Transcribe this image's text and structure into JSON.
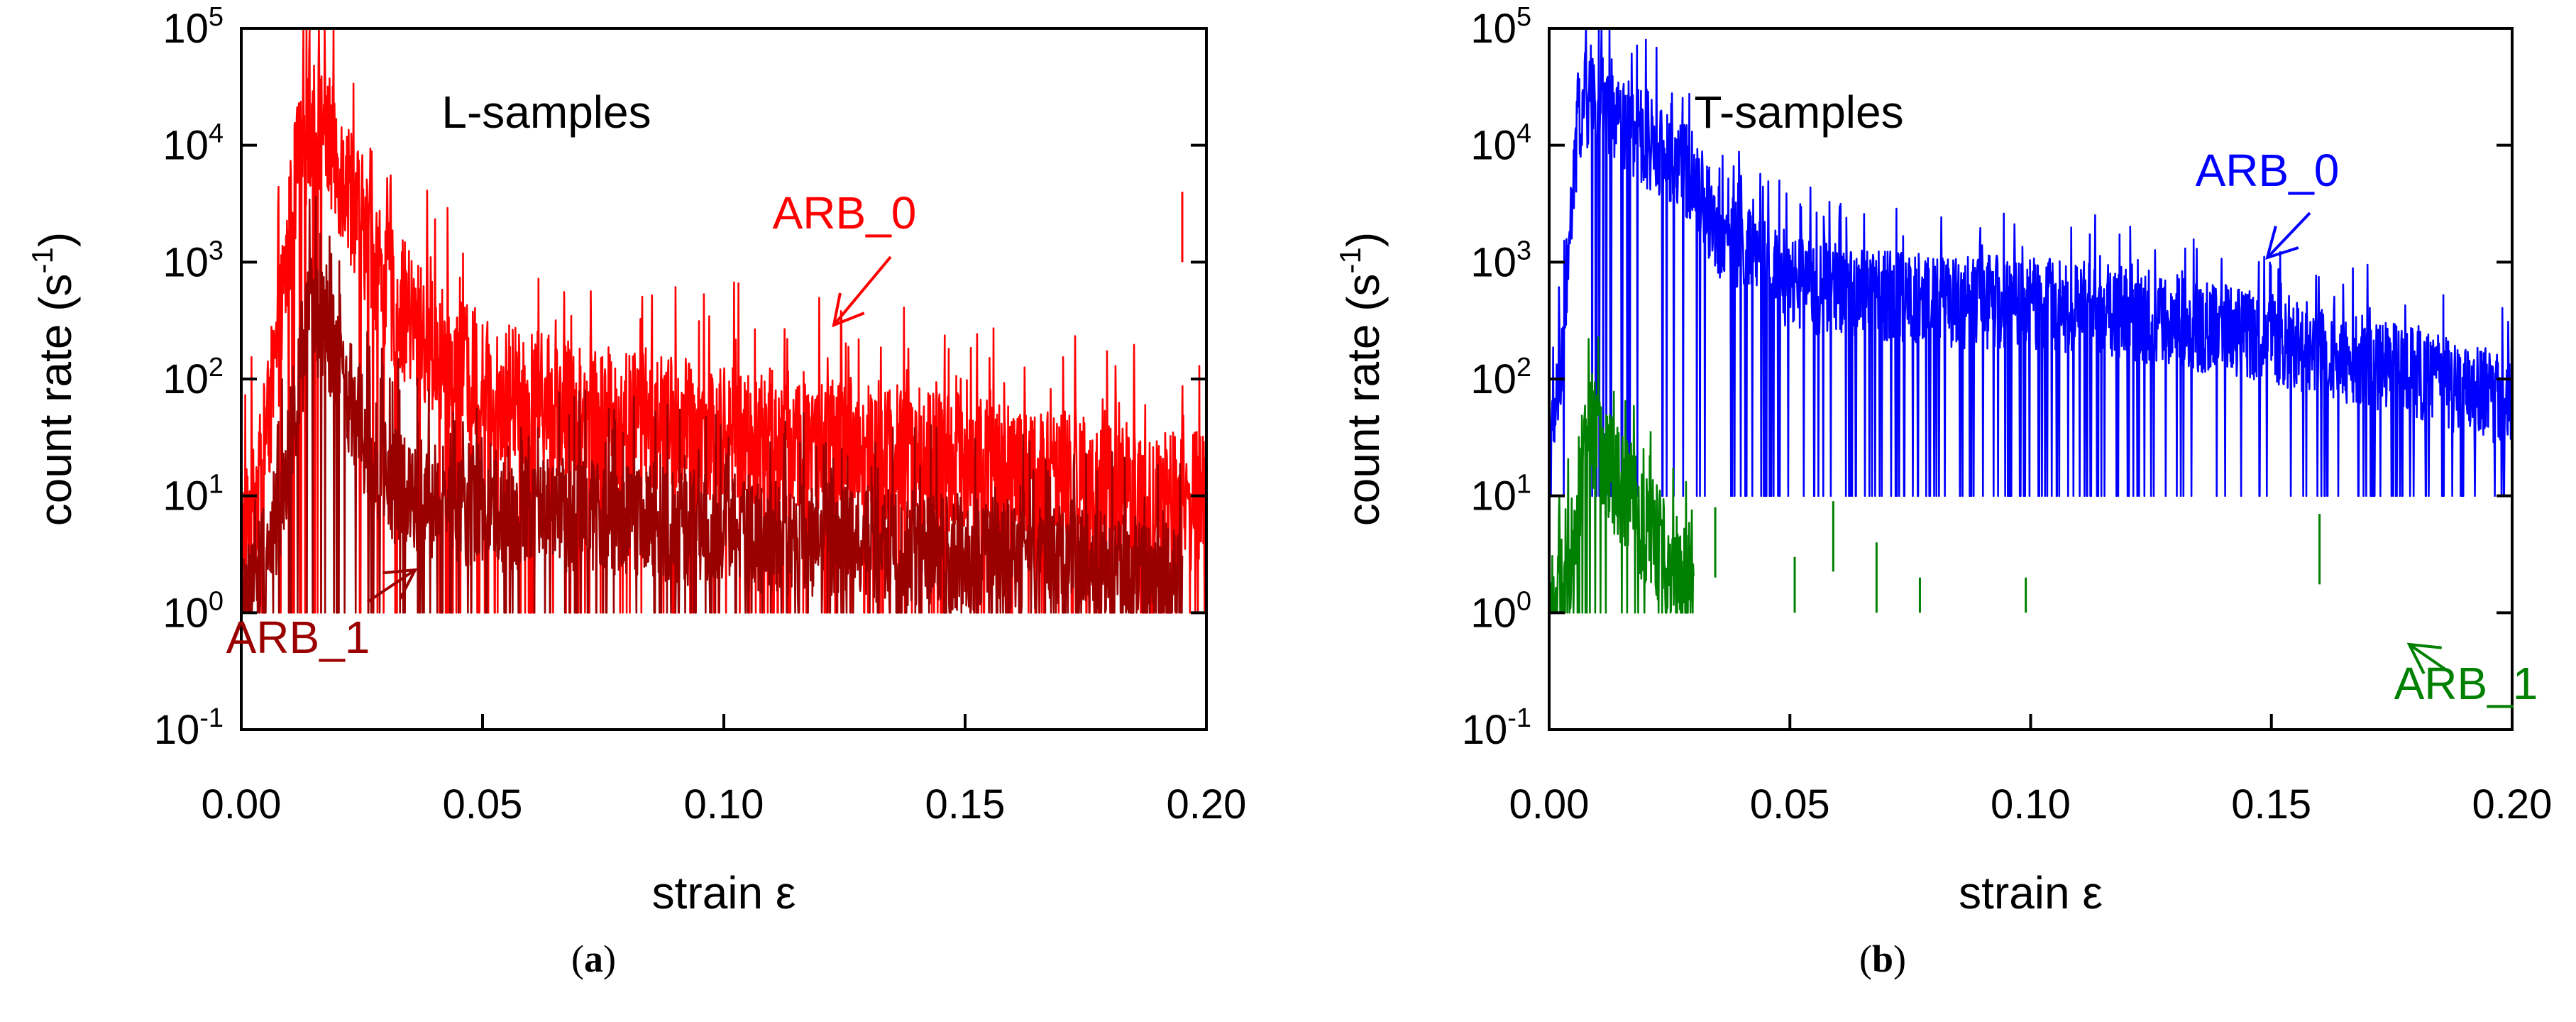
{
  "chart_data": [
    {
      "panel": "a",
      "type": "line",
      "caption": "a",
      "subtitle": "L-samples",
      "xlabel": "strain ε",
      "ylabel": "count rate (s-1)",
      "xlim": [
        0.0,
        0.2
      ],
      "ylim": [
        0.1,
        100000
      ],
      "yscale": "log",
      "x_ticks": [
        0.0,
        0.05,
        0.1,
        0.15,
        0.2
      ],
      "x_tick_labels": [
        "0.00",
        "0.05",
        "0.10",
        "0.15",
        "0.20"
      ],
      "y_ticks": [
        0.1,
        1,
        10,
        100,
        1000,
        10000,
        100000
      ],
      "y_tick_labels": [
        {
          "base": "10",
          "exp": "-1"
        },
        {
          "base": "10",
          "exp": "0"
        },
        {
          "base": "10",
          "exp": "1"
        },
        {
          "base": "10",
          "exp": "2"
        },
        {
          "base": "10",
          "exp": "3"
        },
        {
          "base": "10",
          "exp": "4"
        },
        {
          "base": "10",
          "exp": "5"
        }
      ],
      "series": [
        {
          "name": "ARB_0",
          "color": "#ff0000",
          "strain": [
            0.0,
            0.004,
            0.008,
            0.011,
            0.014,
            0.017,
            0.02,
            0.025,
            0.03,
            0.04,
            0.05,
            0.07,
            0.1,
            0.13,
            0.16,
            0.18,
            0.2
          ],
          "count_rate": [
            5,
            15,
            300,
            5000,
            18000,
            15000,
            8000,
            2500,
            700,
            200,
            100,
            60,
            40,
            30,
            18,
            12,
            10
          ],
          "noise_decades": 1.2,
          "min_rate": 1,
          "spikes": [
            {
              "strain": 0.195,
              "count_rate": 4000
            }
          ]
        },
        {
          "name": "ARB_1",
          "color": "#9b0000",
          "strain": [
            0.0,
            0.008,
            0.011,
            0.014,
            0.017,
            0.02,
            0.025,
            0.03,
            0.04,
            0.05,
            0.08,
            0.11,
            0.14,
            0.17,
            0.195
          ],
          "count_rate": [
            1,
            8,
            60,
            400,
            300,
            150,
            40,
            15,
            10,
            8,
            7,
            5,
            4,
            3,
            2
          ],
          "noise_decades": 1.0,
          "min_rate": 1,
          "spikes": []
        }
      ],
      "annotations": [
        {
          "text": "ARB_0",
          "color": "#ff0000"
        },
        {
          "text": "ARB_1",
          "color": "#9b0000"
        }
      ]
    },
    {
      "panel": "b",
      "type": "line",
      "caption": "b",
      "subtitle": "T-samples",
      "xlabel": "strain ε",
      "ylabel": "count rate (s-1)",
      "xlim": [
        0.0,
        0.2
      ],
      "ylim": [
        0.1,
        100000
      ],
      "yscale": "log",
      "x_ticks": [
        0.0,
        0.05,
        0.1,
        0.15,
        0.2
      ],
      "x_tick_labels": [
        "0.00",
        "0.05",
        "0.10",
        "0.15",
        "0.20"
      ],
      "y_ticks": [
        0.1,
        1,
        10,
        100,
        1000,
        10000,
        100000
      ],
      "y_tick_labels": [
        {
          "base": "10",
          "exp": "-1"
        },
        {
          "base": "10",
          "exp": "0"
        },
        {
          "base": "10",
          "exp": "1"
        },
        {
          "base": "10",
          "exp": "2"
        },
        {
          "base": "10",
          "exp": "3"
        },
        {
          "base": "10",
          "exp": "4"
        },
        {
          "base": "10",
          "exp": "5"
        }
      ],
      "series": [
        {
          "name": "ARB_0",
          "color": "#0000ff",
          "strain": [
            0.0,
            0.002,
            0.004,
            0.006,
            0.008,
            0.012,
            0.02,
            0.03,
            0.035,
            0.05,
            0.08,
            0.1,
            0.12,
            0.15,
            0.17,
            0.2
          ],
          "count_rate": [
            20,
            100,
            1000,
            18000,
            25000,
            22000,
            12000,
            6000,
            2000,
            700,
            500,
            500,
            400,
            250,
            150,
            70
          ],
          "noise_decades": 0.8,
          "min_rate": 10,
          "spikes": []
        },
        {
          "name": "ARB_1",
          "color": "#008000",
          "strain": [
            0.0,
            0.004,
            0.006,
            0.008,
            0.012,
            0.018,
            0.025,
            0.03
          ],
          "count_rate": [
            1,
            2,
            10,
            50,
            20,
            8,
            3,
            2
          ],
          "noise_decades": 1.0,
          "min_rate": 1,
          "spikes": [
            {
              "strain": 0.0345,
              "count_rate": 8
            },
            {
              "strain": 0.051,
              "count_rate": 3
            },
            {
              "strain": 0.059,
              "count_rate": 9
            },
            {
              "strain": 0.068,
              "count_rate": 4
            },
            {
              "strain": 0.077,
              "count_rate": 2
            },
            {
              "strain": 0.099,
              "count_rate": 2
            },
            {
              "strain": 0.16,
              "count_rate": 7
            }
          ]
        }
      ],
      "annotations": [
        {
          "text": "ARB_0",
          "color": "#0000ff"
        },
        {
          "text": "ARB_1",
          "color": "#008000"
        }
      ]
    }
  ],
  "captions": {
    "a": "a",
    "b": "b"
  }
}
